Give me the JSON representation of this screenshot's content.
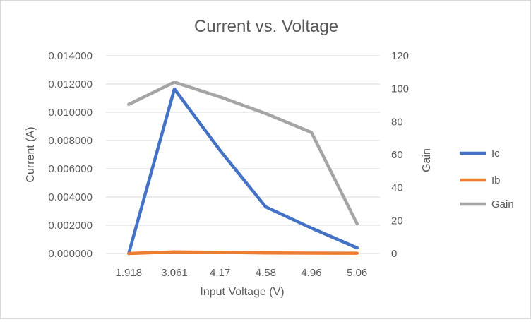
{
  "chart_data": {
    "type": "line",
    "title": "Current vs. Voltage",
    "xlabel": "Input Voltage (V)",
    "ylabel": "Current (A)",
    "y2label": "Gain",
    "categories": [
      "1.918",
      "3.061",
      "4.17",
      "4.58",
      "4.96",
      "5.06"
    ],
    "ylim": [
      0,
      0.014
    ],
    "yticks": [
      "0.000000",
      "0.002000",
      "0.004000",
      "0.006000",
      "0.008000",
      "0.010000",
      "0.012000",
      "0.014000"
    ],
    "y2lim": [
      0,
      120
    ],
    "y2ticks": [
      "0",
      "20",
      "40",
      "60",
      "80",
      "100",
      "120"
    ],
    "grid": true,
    "legend_position": "right",
    "series": [
      {
        "name": "Ic",
        "axis": "left",
        "color": "#4472c4",
        "values": [
          0.0,
          0.01165,
          0.0073,
          0.0033,
          0.0018,
          0.0004
        ]
      },
      {
        "name": "Ib",
        "axis": "left",
        "color": "#ed7d31",
        "values": [
          0.0,
          0.00011,
          8e-05,
          4e-05,
          2.5e-05,
          2e-05
        ]
      },
      {
        "name": "Gain",
        "axis": "right",
        "color": "#a5a5a5",
        "values": [
          90.5,
          104,
          95,
          85,
          73.5,
          18
        ]
      }
    ]
  }
}
